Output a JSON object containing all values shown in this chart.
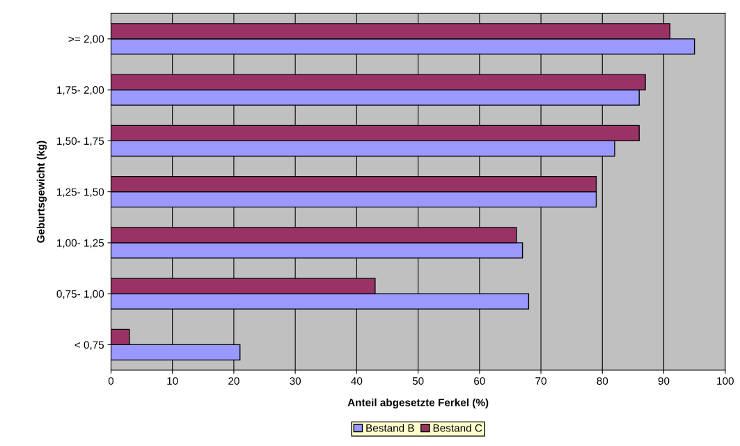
{
  "chart_data": {
    "type": "bar",
    "orientation": "horizontal",
    "xlabel": "Anteil abgesetzte Ferkel (%)",
    "ylabel": "Geburtsgewicht (kg)",
    "categories": [
      ">= 2,00",
      "1,75- 2,00",
      "1,50- 1,75",
      "1,25- 1,50",
      "1,00- 1,25",
      "0,75- 1,00",
      "< 0,75"
    ],
    "series": [
      {
        "name": "Bestand B",
        "color": "#9999ff",
        "values": [
          95,
          86,
          82,
          79,
          67,
          68,
          21
        ]
      },
      {
        "name": "Bestand C",
        "color": "#993366",
        "values": [
          91,
          87,
          86,
          79,
          66,
          43,
          3
        ]
      }
    ],
    "xlim": [
      0,
      100
    ],
    "xticks": [
      0,
      10,
      20,
      30,
      40,
      50,
      60,
      70,
      80,
      90,
      100
    ],
    "grid": "x",
    "legend": "bottom"
  }
}
